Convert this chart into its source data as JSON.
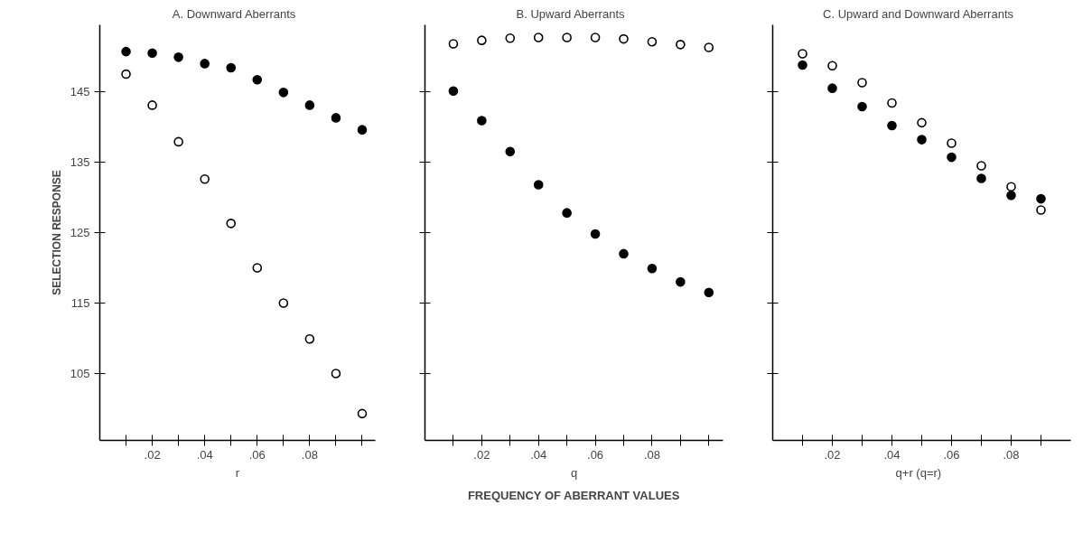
{
  "chart_data": [
    {
      "type": "scatter",
      "title": "A.   Downward Aberrants",
      "xlabel": "r",
      "ylabel": "SELECTION RESPONSE",
      "x": [
        0.01,
        0.02,
        0.03,
        0.04,
        0.05,
        0.06,
        0.07,
        0.08,
        0.09,
        0.1
      ],
      "series": [
        {
          "color": "#000000",
          "marker": "circle",
          "values": [
            150.7,
            150.5,
            149.9,
            149.0,
            148.4,
            146.7,
            144.9,
            143.1,
            141.3,
            139.6
          ]
        },
        {
          "color": "#ffffff",
          "marker": "circle",
          "values": [
            147.5,
            143.1,
            137.9,
            132.6,
            126.3,
            120.0,
            115.0,
            109.9,
            105.0,
            99.3
          ]
        }
      ],
      "xlim": [
        0,
        0.105
      ],
      "ylim": [
        95.5,
        154.5
      ],
      "xticks": [
        {
          "value": 0.01,
          "label": null
        },
        {
          "value": 0.02,
          "label": ".02"
        },
        {
          "value": 0.03,
          "label": null
        },
        {
          "value": 0.04,
          "label": ".04"
        },
        {
          "value": 0.05,
          "label": null
        },
        {
          "value": 0.06,
          "label": ".06"
        },
        {
          "value": 0.07,
          "label": null
        },
        {
          "value": 0.08,
          "label": ".08"
        },
        {
          "value": 0.09,
          "label": null
        },
        {
          "value": 0.1,
          "label": null
        }
      ],
      "yticks": [
        105,
        115,
        125,
        135,
        145
      ],
      "grid": false
    },
    {
      "type": "scatter",
      "title": "B.   Upward Aberrants",
      "xlabel": "q",
      "x": [
        0.01,
        0.02,
        0.03,
        0.04,
        0.05,
        0.06,
        0.07,
        0.08,
        0.09,
        0.1
      ],
      "series": [
        {
          "color": "#000000",
          "marker": "circle",
          "values": [
            145.1,
            140.9,
            136.5,
            131.8,
            127.8,
            124.8,
            122.0,
            119.9,
            118.0,
            116.5
          ]
        },
        {
          "color": "#ffffff",
          "marker": "circle",
          "values": [
            151.8,
            152.3,
            152.6,
            152.7,
            152.7,
            152.7,
            152.5,
            152.1,
            151.7,
            151.3
          ]
        }
      ],
      "xlim": [
        0,
        0.105
      ],
      "ylim": [
        95.5,
        154.5
      ],
      "xticks": [
        {
          "value": 0.01,
          "label": null
        },
        {
          "value": 0.02,
          "label": ".02"
        },
        {
          "value": 0.03,
          "label": null
        },
        {
          "value": 0.04,
          "label": ".04"
        },
        {
          "value": 0.05,
          "label": null
        },
        {
          "value": 0.06,
          "label": ".06"
        },
        {
          "value": 0.07,
          "label": null
        },
        {
          "value": 0.08,
          "label": ".08"
        },
        {
          "value": 0.09,
          "label": null
        },
        {
          "value": 0.1,
          "label": null
        }
      ],
      "yticks": [
        105,
        115,
        125,
        135,
        145
      ],
      "tick_labels": "x",
      "grid": false,
      "annotations": [
        "FREQUENCY OF ABERRANT VALUES"
      ]
    },
    {
      "type": "scatter",
      "title": "C.   Upward and Downward Aberrants",
      "xlabel": "q+r   (q=r)",
      "x": [
        0.01,
        0.02,
        0.03,
        0.04,
        0.05,
        0.06,
        0.07,
        0.08,
        0.09
      ],
      "series": [
        {
          "color": "#000000",
          "marker": "circle",
          "values": [
            148.8,
            145.5,
            142.9,
            140.2,
            138.2,
            135.7,
            132.7,
            130.3,
            129.8
          ]
        },
        {
          "color": "#ffffff",
          "marker": "circle",
          "values": [
            150.4,
            148.7,
            146.3,
            143.4,
            140.6,
            137.7,
            134.5,
            131.5,
            128.2
          ]
        }
      ],
      "xlim": [
        0,
        0.1
      ],
      "ylim": [
        95.5,
        154.5
      ],
      "xticks": [
        {
          "value": 0.01,
          "label": null
        },
        {
          "value": 0.02,
          "label": ".02"
        },
        {
          "value": 0.03,
          "label": null
        },
        {
          "value": 0.04,
          "label": ".04"
        },
        {
          "value": 0.05,
          "label": null
        },
        {
          "value": 0.06,
          "label": ".06"
        },
        {
          "value": 0.07,
          "label": null
        },
        {
          "value": 0.08,
          "label": ".08"
        },
        {
          "value": 0.09,
          "label": null
        }
      ],
      "yticks": [
        105,
        115,
        125,
        135,
        145
      ],
      "tick_labels": "x",
      "grid": false
    }
  ]
}
